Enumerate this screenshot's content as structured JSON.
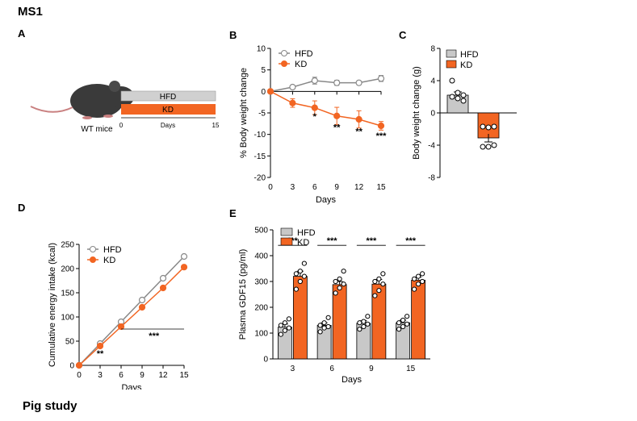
{
  "figure": {
    "title": "MS1",
    "footer": "Pig study"
  },
  "colors": {
    "hfd": "#c8c8c8",
    "kd": "#f26522",
    "axis": "#000000"
  },
  "panelA": {
    "label": "A",
    "mouse_label": "WT mice",
    "bars": [
      {
        "name": "HFD"
      },
      {
        "name": "KD"
      }
    ],
    "axis": {
      "start": "0",
      "end": "15",
      "label": "Days"
    }
  },
  "chart_data": [
    {
      "id": "B",
      "type": "line",
      "panel_label": "B",
      "xlabel": "Days",
      "ylabel": "% Body weight change",
      "xlim": [
        0,
        15
      ],
      "ylim": [
        -20,
        10
      ],
      "xticks": [
        0,
        3,
        6,
        9,
        12,
        15
      ],
      "yticks": [
        -20,
        -15,
        -10,
        -5,
        0,
        5,
        10
      ],
      "legend": "top-left",
      "series": [
        {
          "name": "HFD",
          "x": [
            0,
            3,
            6,
            9,
            12,
            15
          ],
          "y": [
            0,
            1,
            2.5,
            2,
            2,
            3
          ],
          "err": [
            0,
            0.3,
            0.8,
            0.6,
            0.4,
            0.7
          ]
        },
        {
          "name": "KD",
          "x": [
            0,
            3,
            6,
            9,
            12,
            15
          ],
          "y": [
            0,
            -2.7,
            -3.8,
            -5.7,
            -6.5,
            -8
          ],
          "err": [
            0,
            1,
            1.6,
            2,
            2,
            1
          ]
        }
      ],
      "annotations": [
        {
          "x": 6,
          "y": -6.5,
          "text": "*"
        },
        {
          "x": 9,
          "y": -9,
          "text": "**"
        },
        {
          "x": 12,
          "y": -10,
          "text": "**"
        },
        {
          "x": 15,
          "y": -11,
          "text": "***"
        }
      ]
    },
    {
      "id": "C",
      "type": "bar",
      "panel_label": "C",
      "ylabel": "Body weight change (g)",
      "ylim": [
        -8,
        8
      ],
      "yticks": [
        -8,
        -4,
        0,
        4,
        8
      ],
      "legend": "top-right",
      "series": [
        {
          "name": "HFD",
          "value": 2.2,
          "err": 0.4,
          "points": [
            4,
            2.5,
            1.5,
            2,
            1.8,
            2.2
          ]
        },
        {
          "name": "KD",
          "value": -3.1,
          "err": 0.5,
          "points": [
            -1.7,
            -1.8,
            -1.7,
            -4.2,
            -4.2,
            -4
          ]
        }
      ]
    },
    {
      "id": "D",
      "type": "line",
      "panel_label": "D",
      "xlabel": "Days",
      "ylabel": "Cumulative energy intake (kcal)",
      "xlim": [
        0,
        15
      ],
      "ylim": [
        0,
        250
      ],
      "xticks": [
        0,
        3,
        6,
        9,
        12,
        15
      ],
      "yticks": [
        0,
        50,
        100,
        150,
        200,
        250
      ],
      "legend": "top-left",
      "series": [
        {
          "name": "HFD",
          "x": [
            0,
            3,
            6,
            9,
            12,
            15
          ],
          "y": [
            0,
            45,
            90,
            135,
            180,
            225
          ]
        },
        {
          "name": "KD",
          "x": [
            0,
            3,
            6,
            9,
            12,
            15
          ],
          "y": [
            0,
            40,
            80,
            120,
            160,
            203
          ]
        }
      ],
      "annotations": [
        {
          "text": "**",
          "x": 3,
          "y": 18
        },
        {
          "text": "***",
          "x": 10.7,
          "y": 55
        }
      ]
    },
    {
      "id": "E",
      "type": "bar",
      "panel_label": "E",
      "xlabel": "Days",
      "ylabel": "Plasma GDF15 (pg/ml)",
      "categories": [
        "3",
        "6",
        "9",
        "15"
      ],
      "ylim": [
        0,
        500
      ],
      "yticks": [
        0,
        100,
        200,
        300,
        400,
        500
      ],
      "legend": "top-left",
      "series": [
        {
          "name": "HFD",
          "values": [
            123,
            130,
            138,
            140
          ],
          "err": [
            12,
            10,
            10,
            10
          ],
          "points": [
            [
              95,
              110,
              120,
              130,
              140,
              155
            ],
            [
              105,
              120,
              125,
              130,
              140,
              160
            ],
            [
              115,
              125,
              135,
              140,
              145,
              165
            ],
            [
              115,
              125,
              135,
              140,
              150,
              165
            ]
          ]
        },
        {
          "name": "KD",
          "values": [
            320,
            288,
            290,
            305
          ],
          "err": [
            20,
            12,
            18,
            12
          ],
          "points": [
            [
              270,
              300,
              320,
              330,
              340,
              370
            ],
            [
              255,
              275,
              290,
              300,
              310,
              340
            ],
            [
              245,
              265,
              290,
              300,
              310,
              330
            ],
            [
              270,
              290,
              300,
              310,
              320,
              330
            ]
          ]
        }
      ],
      "significance": [
        "***",
        "***",
        "***",
        "***"
      ]
    }
  ]
}
